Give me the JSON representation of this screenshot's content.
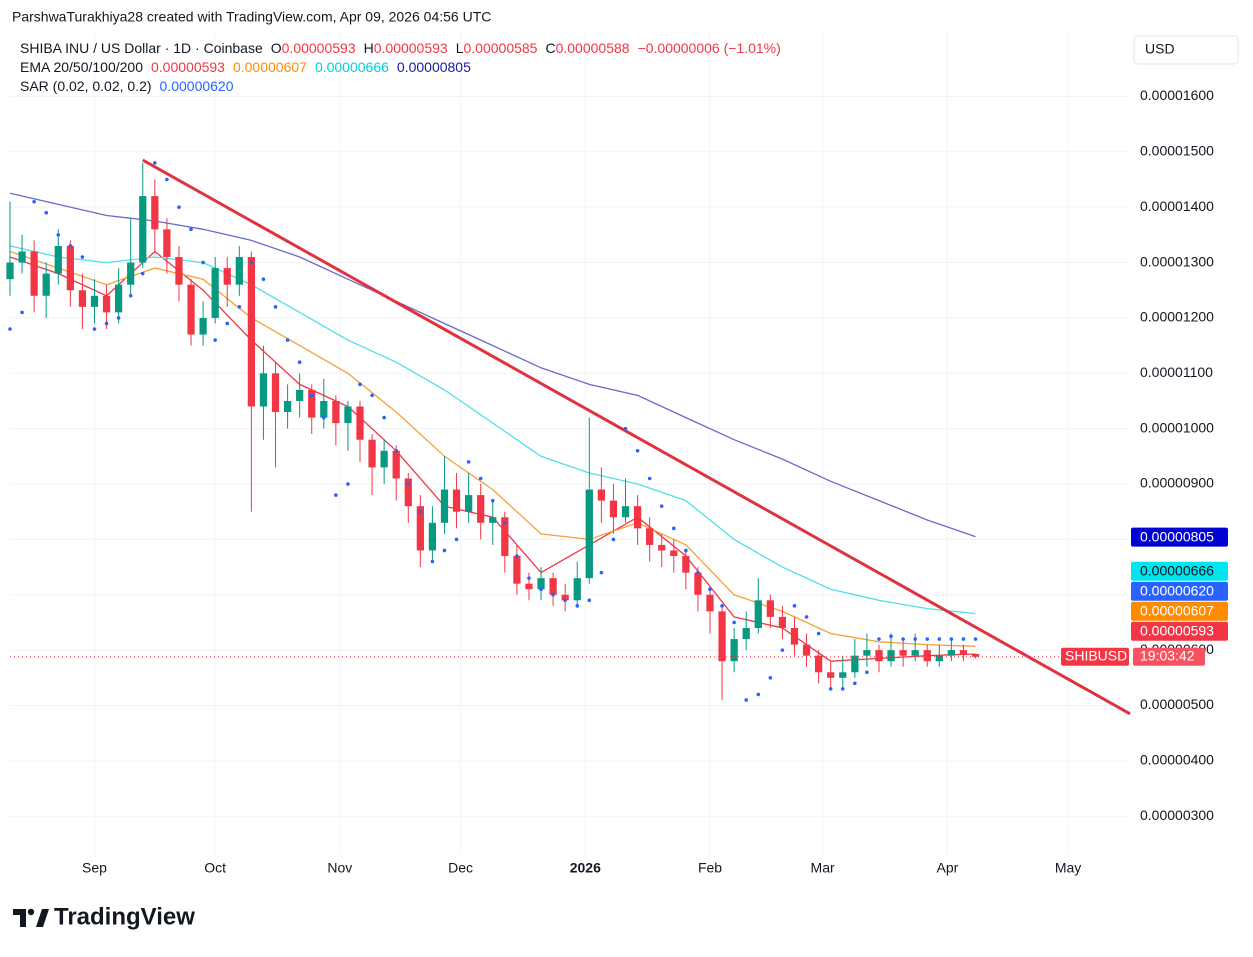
{
  "chart_data": {
    "type": "candlestick",
    "credit": "ParshwaTurakhiya28 created with TradingView.com, Apr 09, 2026 04:56 UTC",
    "header": {
      "symbol": "SHIBA INU / US Dollar · 1D · Coinbase",
      "ohlc": [
        {
          "key": "O",
          "value": "0.00000593"
        },
        {
          "key": "H",
          "value": "0.00000593"
        },
        {
          "key": "L",
          "value": "0.00000585"
        },
        {
          "key": "C",
          "value": "0.00000588"
        }
      ],
      "change": "−0.00000006 (−1.01%)"
    },
    "ema_legend": "EMA 20/50/100/200",
    "currency": "USD",
    "brand": "TradingView",
    "symbol_tag": "SHIBUSD",
    "countdown": "19:03:42",
    "up_color": "#089981",
    "down_color": "#f23645",
    "xlim": [
      0,
      92.8
    ],
    "ylim": [
      2.3e-06,
      1.72e-05
    ],
    "xticks": [
      {
        "value": 7,
        "label": "Sep"
      },
      {
        "value": 17,
        "label": "Oct"
      },
      {
        "value": 27.33,
        "label": "Nov"
      },
      {
        "value": 37.33,
        "label": "Dec"
      },
      {
        "value": 47.67,
        "label": "2026"
      },
      {
        "value": 58,
        "label": "Feb"
      },
      {
        "value": 67.33,
        "label": "Mar"
      },
      {
        "value": 77.67,
        "label": "Apr"
      },
      {
        "value": 87.67,
        "label": "May"
      }
    ],
    "yticks": [
      {
        "value": 3e-06,
        "label": "0.00000300"
      },
      {
        "value": 4e-06,
        "label": "0.00000400"
      },
      {
        "value": 5e-06,
        "label": "0.00000500"
      },
      {
        "value": 6e-06,
        "label": "0.00000600"
      },
      {
        "value": 7e-06,
        "label": "0.00000700"
      },
      {
        "value": 8e-06,
        "label": "0.00000800"
      },
      {
        "value": 9e-06,
        "label": "0.00000900"
      },
      {
        "value": 1e-05,
        "label": "0.00001000"
      },
      {
        "value": 1.1e-05,
        "label": "0.00001100"
      },
      {
        "value": 1.2e-05,
        "label": "0.00001200"
      },
      {
        "value": 1.3e-05,
        "label": "0.00001300"
      },
      {
        "value": 1.4e-05,
        "label": "0.00001400"
      },
      {
        "value": 1.5e-05,
        "label": "0.00001500"
      },
      {
        "value": 1.6e-05,
        "label": "0.00001600"
      }
    ],
    "grid": true,
    "open": [
      1.27e-05,
      1.3e-05,
      1.32e-05,
      1.24e-05,
      1.28e-05,
      1.33e-05,
      1.25e-05,
      1.22e-05,
      1.24e-05,
      1.21e-05,
      1.26e-05,
      1.3e-05,
      1.42e-05,
      1.36e-05,
      1.31e-05,
      1.26e-05,
      1.17e-05,
      1.2e-05,
      1.29e-05,
      1.26e-05,
      1.31e-05,
      1.04e-05,
      1.1e-05,
      1.03e-05,
      1.05e-05,
      1.07e-05,
      1.02e-05,
      1.05e-05,
      1.01e-05,
      1.04e-05,
      9.8e-06,
      9.3e-06,
      9.6e-06,
      9.1e-06,
      8.6e-06,
      7.8e-06,
      8.3e-06,
      8.9e-06,
      8.5e-06,
      8.8e-06,
      8.3e-06,
      8.4e-06,
      7.7e-06,
      7.2e-06,
      7.1e-06,
      7.3e-06,
      7e-06,
      6.9e-06,
      7.3e-06,
      8.9e-06,
      8.7e-06,
      8.4e-06,
      8.6e-06,
      8.2e-06,
      7.9e-06,
      7.8e-06,
      7.7e-06,
      7.4e-06,
      7e-06,
      6.7e-06,
      5.8e-06,
      6.2e-06,
      6.4e-06,
      6.9e-06,
      6.6e-06,
      6.4e-06,
      6.1e-06,
      5.9e-06,
      5.6e-06,
      5.5e-06,
      5.6e-06,
      5.9e-06,
      6e-06,
      5.8e-06,
      6e-06,
      5.9e-06,
      6e-06,
      5.8e-06,
      5.9e-06,
      6e-06,
      5.93e-06
    ],
    "high": [
      1.41e-05,
      1.35e-05,
      1.34e-05,
      1.3e-05,
      1.36e-05,
      1.34e-05,
      1.28e-05,
      1.27e-05,
      1.26e-05,
      1.29e-05,
      1.38e-05,
      1.48e-05,
      1.45e-05,
      1.38e-05,
      1.33e-05,
      1.27e-05,
      1.23e-05,
      1.31e-05,
      1.31e-05,
      1.33e-05,
      1.32e-05,
      1.15e-05,
      1.12e-05,
      1.08e-05,
      1.1e-05,
      1.08e-05,
      1.09e-05,
      1.06e-05,
      1.05e-05,
      1.05e-05,
      9.9e-06,
      9.8e-06,
      9.7e-06,
      9.2e-06,
      8.8e-06,
      8.6e-06,
      9.5e-06,
      9.2e-06,
      9.2e-06,
      9e-06,
      8.7e-06,
      8.5e-06,
      7.9e-06,
      7.4e-06,
      7.5e-06,
      7.4e-06,
      7.2e-06,
      7.6e-06,
      1.02e-05,
      9.3e-06,
      9e-06,
      9.1e-06,
      8.8e-06,
      8.4e-06,
      8.1e-06,
      8e-06,
      7.8e-06,
      7.5e-06,
      7.1e-06,
      6.8e-06,
      6.4e-06,
      6.7e-06,
      7.3e-06,
      7e-06,
      6.8e-06,
      6.6e-06,
      6.3e-06,
      6e-06,
      5.8e-06,
      5.9e-06,
      6.2e-06,
      6.3e-06,
      6.1e-06,
      6.3e-06,
      6.2e-06,
      6.3e-06,
      6.1e-06,
      6.1e-06,
      6.2e-06,
      6.1e-06,
      5.93e-06
    ],
    "low": [
      1.24e-05,
      1.28e-05,
      1.21e-05,
      1.2e-05,
      1.26e-05,
      1.22e-05,
      1.18e-05,
      1.19e-05,
      1.18e-05,
      1.19e-05,
      1.24e-05,
      1.29e-05,
      1.32e-05,
      1.28e-05,
      1.23e-05,
      1.15e-05,
      1.15e-05,
      1.19e-05,
      1.22e-05,
      1.24e-05,
      8.5e-06,
      9.8e-06,
      9.3e-06,
      1e-05,
      1.02e-05,
      9.9e-06,
      1e-05,
      9.7e-06,
      9.6e-06,
      9.4e-06,
      8.8e-06,
      9e-06,
      8.7e-06,
      8.3e-06,
      7.5e-06,
      7.6e-06,
      8.1e-06,
      8.2e-06,
      8.3e-06,
      8e-06,
      7.9e-06,
      7.4e-06,
      7e-06,
      6.9e-06,
      6.9e-06,
      6.8e-06,
      6.7e-06,
      6.8e-06,
      7.2e-06,
      8.3e-06,
      8.1e-06,
      8.3e-06,
      7.9e-06,
      7.6e-06,
      7.5e-06,
      7.4e-06,
      7.1e-06,
      6.7e-06,
      6.3e-06,
      5.1e-06,
      5.6e-06,
      6e-06,
      6.3e-06,
      6.4e-06,
      6.2e-06,
      5.9e-06,
      5.7e-06,
      5.4e-06,
      5.3e-06,
      5.3e-06,
      5.5e-06,
      5.7e-06,
      5.6e-06,
      5.7e-06,
      5.7e-06,
      5.8e-06,
      5.7e-06,
      5.7e-06,
      5.8e-06,
      5.8e-06,
      5.85e-06
    ],
    "close": [
      1.3e-05,
      1.32e-05,
      1.24e-05,
      1.28e-05,
      1.33e-05,
      1.25e-05,
      1.22e-05,
      1.24e-05,
      1.21e-05,
      1.26e-05,
      1.3e-05,
      1.42e-05,
      1.36e-05,
      1.31e-05,
      1.26e-05,
      1.17e-05,
      1.2e-05,
      1.29e-05,
      1.26e-05,
      1.31e-05,
      1.04e-05,
      1.1e-05,
      1.03e-05,
      1.05e-05,
      1.07e-05,
      1.02e-05,
      1.05e-05,
      1.01e-05,
      1.04e-05,
      9.8e-06,
      9.3e-06,
      9.6e-06,
      9.1e-06,
      8.6e-06,
      7.8e-06,
      8.3e-06,
      8.9e-06,
      8.5e-06,
      8.8e-06,
      8.3e-06,
      8.4e-06,
      7.7e-06,
      7.2e-06,
      7.1e-06,
      7.3e-06,
      7e-06,
      6.9e-06,
      7.3e-06,
      8.9e-06,
      8.7e-06,
      8.4e-06,
      8.6e-06,
      8.2e-06,
      7.9e-06,
      7.8e-06,
      7.7e-06,
      7.4e-06,
      7e-06,
      6.7e-06,
      5.8e-06,
      6.2e-06,
      6.4e-06,
      6.9e-06,
      6.6e-06,
      6.4e-06,
      6.1e-06,
      5.9e-06,
      5.6e-06,
      5.5e-06,
      5.6e-06,
      5.9e-06,
      6e-06,
      5.8e-06,
      6e-06,
      5.9e-06,
      6e-06,
      5.8e-06,
      5.9e-06,
      6e-06,
      5.93e-06,
      5.88e-06
    ],
    "series": [
      {
        "color": "#f23645",
        "tag_color": "#f23645",
        "last_value_label": "0.00000593",
        "x": [
          0,
          4,
          8,
          12,
          16,
          20,
          24,
          28,
          32,
          36,
          40,
          44,
          48,
          52,
          56,
          60,
          64,
          68,
          72,
          76,
          80
        ],
        "values": [
          1.31e-05,
          1.28e-05,
          1.24e-05,
          1.32e-05,
          1.25e-05,
          1.16e-05,
          1.08e-05,
          1.04e-05,
          9.6e-06,
          8.6e-06,
          8.4e-06,
          7.4e-06,
          7.9e-06,
          8.4e-06,
          7.7e-06,
          6.6e-06,
          6.4e-06,
          5.8e-06,
          5.85e-06,
          5.9e-06,
          5.93e-06
        ]
      },
      {
        "color": "#f7a035",
        "tag_color": "#ff8c00",
        "last_value_label": "0.00000607",
        "x": [
          0,
          4,
          8,
          12,
          16,
          20,
          24,
          28,
          32,
          36,
          40,
          44,
          48,
          52,
          56,
          60,
          64,
          68,
          72,
          76,
          80
        ],
        "values": [
          1.32e-05,
          1.29e-05,
          1.26e-05,
          1.29e-05,
          1.27e-05,
          1.2e-05,
          1.15e-05,
          1.1e-05,
          1.03e-05,
          9.5e-06,
          8.9e-06,
          8.1e-06,
          8e-06,
          8.3e-06,
          7.9e-06,
          7e-06,
          6.7e-06,
          6.3e-06,
          6.15e-06,
          6.1e-06,
          6.07e-06
        ]
      },
      {
        "color": "#4fe0e8",
        "tag_color": "#00e5ee",
        "last_value_label": "0.00000666",
        "x": [
          0,
          4,
          8,
          12,
          16,
          20,
          24,
          28,
          32,
          36,
          40,
          44,
          48,
          52,
          56,
          60,
          64,
          68,
          72,
          76,
          80
        ],
        "values": [
          1.33e-05,
          1.31e-05,
          1.3e-05,
          1.31e-05,
          1.3e-05,
          1.26e-05,
          1.21e-05,
          1.16e-05,
          1.12e-05,
          1.07e-05,
          1.01e-05,
          9.5e-06,
          9.2e-06,
          9e-06,
          8.7e-06,
          8e-06,
          7.5e-06,
          7.1e-06,
          6.9e-06,
          6.75e-06,
          6.66e-06
        ]
      },
      {
        "color": "#6a6acb",
        "tag_color": "#0000d0",
        "last_value_label": "0.00000805",
        "x": [
          0,
          4,
          8,
          12,
          16,
          20,
          24,
          28,
          32,
          36,
          40,
          44,
          48,
          52,
          56,
          60,
          64,
          68,
          72,
          76,
          80
        ],
        "values": [
          1.425e-05,
          1.405e-05,
          1.385e-05,
          1.375e-05,
          1.36e-05,
          1.34e-05,
          1.31e-05,
          1.27e-05,
          1.23e-05,
          1.19e-05,
          1.15e-05,
          1.11e-05,
          1.08e-05,
          1.06e-05,
          1.02e-05,
          9.8e-06,
          9.45e-06,
          9.05e-06,
          8.7e-06,
          8.35e-06,
          8.05e-06
        ]
      }
    ],
    "sar": {
      "name": "SAR (0.02, 0.02, 0.2)",
      "color": "#2962ff",
      "last_value_label": "0.00000620",
      "values": [
        1.18e-05,
        1.21e-05,
        1.41e-05,
        1.39e-05,
        1.35e-05,
        1.33e-05,
        1.31e-05,
        1.18e-05,
        1.19e-05,
        1.2e-05,
        1.24e-05,
        1.28e-05,
        1.48e-05,
        1.45e-05,
        1.4e-05,
        1.36e-05,
        1.3e-05,
        1.16e-05,
        1.19e-05,
        1.22e-05,
        1.3e-05,
        1.27e-05,
        1.22e-05,
        1.16e-05,
        1.12e-05,
        1.06e-05,
        1.02e-05,
        8.8e-06,
        9e-06,
        1.08e-05,
        1.06e-05,
        1.02e-05,
        9.6e-06,
        9e-06,
        8.5e-06,
        7.6e-06,
        7.8e-06,
        8e-06,
        9.4e-06,
        9.1e-06,
        8.7e-06,
        8.3e-06,
        7.7e-06,
        7.3e-06,
        7.1e-06,
        7e-06,
        6.9e-06,
        6.8e-06,
        6.9e-06,
        7.4e-06,
        8e-06,
        1e-05,
        9.6e-06,
        9.1e-06,
        8.6e-06,
        8.2e-06,
        7.8e-06,
        7.4e-06,
        7.1e-06,
        6.8e-06,
        6.5e-06,
        5.1e-06,
        5.2e-06,
        5.5e-06,
        6e-06,
        6.8e-06,
        6.6e-06,
        6.3e-06,
        5.3e-06,
        5.3e-06,
        5.4e-06,
        5.6e-06,
        6.2e-06,
        6.25e-06,
        6.2e-06,
        6.2e-06,
        6.2e-06,
        6.2e-06,
        6.2e-06,
        6.2e-06,
        6.2e-06
      ]
    },
    "trendline": {
      "color": "#e0333f",
      "x": [
        11,
        92.8
      ],
      "values": [
        1.485e-05,
        4.85e-06
      ]
    }
  }
}
